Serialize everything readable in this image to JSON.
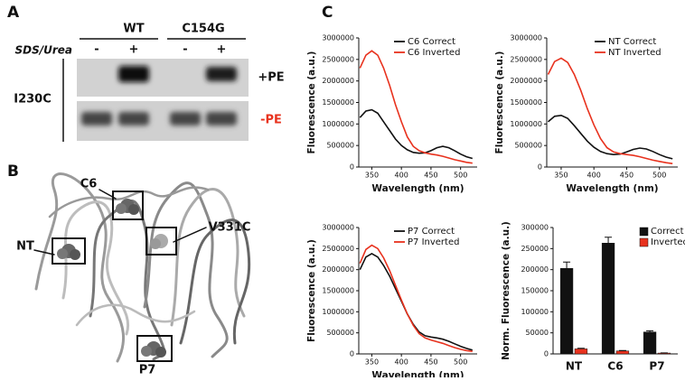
{
  "panel_labels": [
    "A",
    "B",
    "C"
  ],
  "blot": {
    "columns": [
      "WT",
      "C154G"
    ],
    "treatment": "SDS/Urea",
    "lanes": [
      "-",
      "+",
      "-",
      "+"
    ],
    "rows": [
      "+PE",
      "-PE"
    ],
    "sample": "I230C"
  },
  "structure": {
    "labels": [
      "C6",
      "NT",
      "V331C",
      "P7"
    ]
  },
  "chart_data": [
    {
      "type": "line",
      "ylabel": "Fluorescence (a.u.)",
      "xlabel": "Wavelength (nm)",
      "legend": "upper right",
      "x": [
        330,
        340,
        350,
        360,
        370,
        380,
        390,
        400,
        410,
        420,
        430,
        440,
        450,
        460,
        470,
        480,
        490,
        500,
        510,
        520
      ],
      "series": [
        {
          "name": "C6 Correct",
          "color": "#111111",
          "values": [
            1150000,
            1300000,
            1330000,
            1250000,
            1050000,
            850000,
            650000,
            500000,
            400000,
            340000,
            320000,
            330000,
            380000,
            450000,
            480000,
            450000,
            380000,
            300000,
            240000,
            200000
          ]
        },
        {
          "name": "C6 Inverted",
          "color": "#e8321e",
          "values": [
            2300000,
            2600000,
            2700000,
            2600000,
            2300000,
            1900000,
            1450000,
            1050000,
            700000,
            480000,
            380000,
            330000,
            300000,
            280000,
            250000,
            210000,
            170000,
            140000,
            110000,
            90000
          ]
        }
      ],
      "xlim": [
        328,
        528
      ],
      "xticks": [
        350,
        400,
        450,
        500
      ],
      "ylim": [
        0,
        3000000
      ],
      "yticks": [
        0,
        500000,
        1000000,
        1500000,
        2000000,
        2500000,
        3000000
      ]
    },
    {
      "type": "line",
      "ylabel": "Fluorescence (a.u.)",
      "xlabel": "Wavelength (nm)",
      "legend": "upper right",
      "x": [
        330,
        340,
        350,
        360,
        370,
        380,
        390,
        400,
        410,
        420,
        430,
        440,
        450,
        460,
        470,
        480,
        490,
        500,
        510,
        520
      ],
      "series": [
        {
          "name": "NT Correct",
          "color": "#111111",
          "values": [
            1050000,
            1180000,
            1200000,
            1130000,
            960000,
            780000,
            600000,
            460000,
            360000,
            310000,
            290000,
            300000,
            350000,
            410000,
            440000,
            420000,
            360000,
            290000,
            230000,
            190000
          ]
        },
        {
          "name": "NT Inverted",
          "color": "#e8321e",
          "values": [
            2150000,
            2450000,
            2530000,
            2430000,
            2150000,
            1780000,
            1350000,
            980000,
            660000,
            450000,
            350000,
            310000,
            290000,
            270000,
            240000,
            200000,
            160000,
            130000,
            100000,
            80000
          ]
        }
      ],
      "xlim": [
        328,
        528
      ],
      "xticks": [
        350,
        400,
        450,
        500
      ],
      "ylim": [
        0,
        3000000
      ],
      "yticks": [
        0,
        500000,
        1000000,
        1500000,
        2000000,
        2500000,
        3000000
      ]
    },
    {
      "type": "line",
      "ylabel": "Fluorescence (a.u.)",
      "xlabel": "Wavelength (nm)",
      "legend": "upper right",
      "x": [
        330,
        340,
        350,
        360,
        370,
        380,
        390,
        400,
        410,
        420,
        430,
        440,
        450,
        460,
        470,
        480,
        490,
        500,
        510,
        520
      ],
      "series": [
        {
          "name": "P7 Correct",
          "color": "#111111",
          "values": [
            2000000,
            2300000,
            2380000,
            2300000,
            2100000,
            1850000,
            1550000,
            1250000,
            950000,
            700000,
            520000,
            430000,
            400000,
            380000,
            350000,
            300000,
            240000,
            180000,
            130000,
            90000
          ]
        },
        {
          "name": "P7 Inverted",
          "color": "#e8321e",
          "values": [
            2150000,
            2480000,
            2580000,
            2500000,
            2280000,
            1980000,
            1630000,
            1280000,
            950000,
            680000,
            480000,
            380000,
            330000,
            290000,
            250000,
            200000,
            150000,
            110000,
            80000,
            60000
          ]
        }
      ],
      "xlim": [
        328,
        528
      ],
      "xticks": [
        350,
        400,
        450,
        500
      ],
      "ylim": [
        0,
        3000000
      ],
      "yticks": [
        0,
        500000,
        1000000,
        1500000,
        2000000,
        2500000,
        3000000
      ]
    },
    {
      "type": "bar",
      "ylabel": "Norm. Fluorescence (a.u.)",
      "legend": "upper right",
      "categories": [
        "NT",
        "C6",
        "P7"
      ],
      "series": [
        {
          "name": "Correct",
          "color": "#111111",
          "values": [
            203000,
            263000,
            52000
          ],
          "errors": [
            15000,
            14000,
            3000
          ]
        },
        {
          "name": "Inverted",
          "color": "#e8321e",
          "values": [
            12000,
            7000,
            2000
          ],
          "errors": [
            1500,
            1000,
            500
          ]
        }
      ],
      "ylim": [
        0,
        300000
      ],
      "yticks": [
        0,
        50000,
        100000,
        150000,
        200000,
        250000,
        300000
      ]
    }
  ]
}
